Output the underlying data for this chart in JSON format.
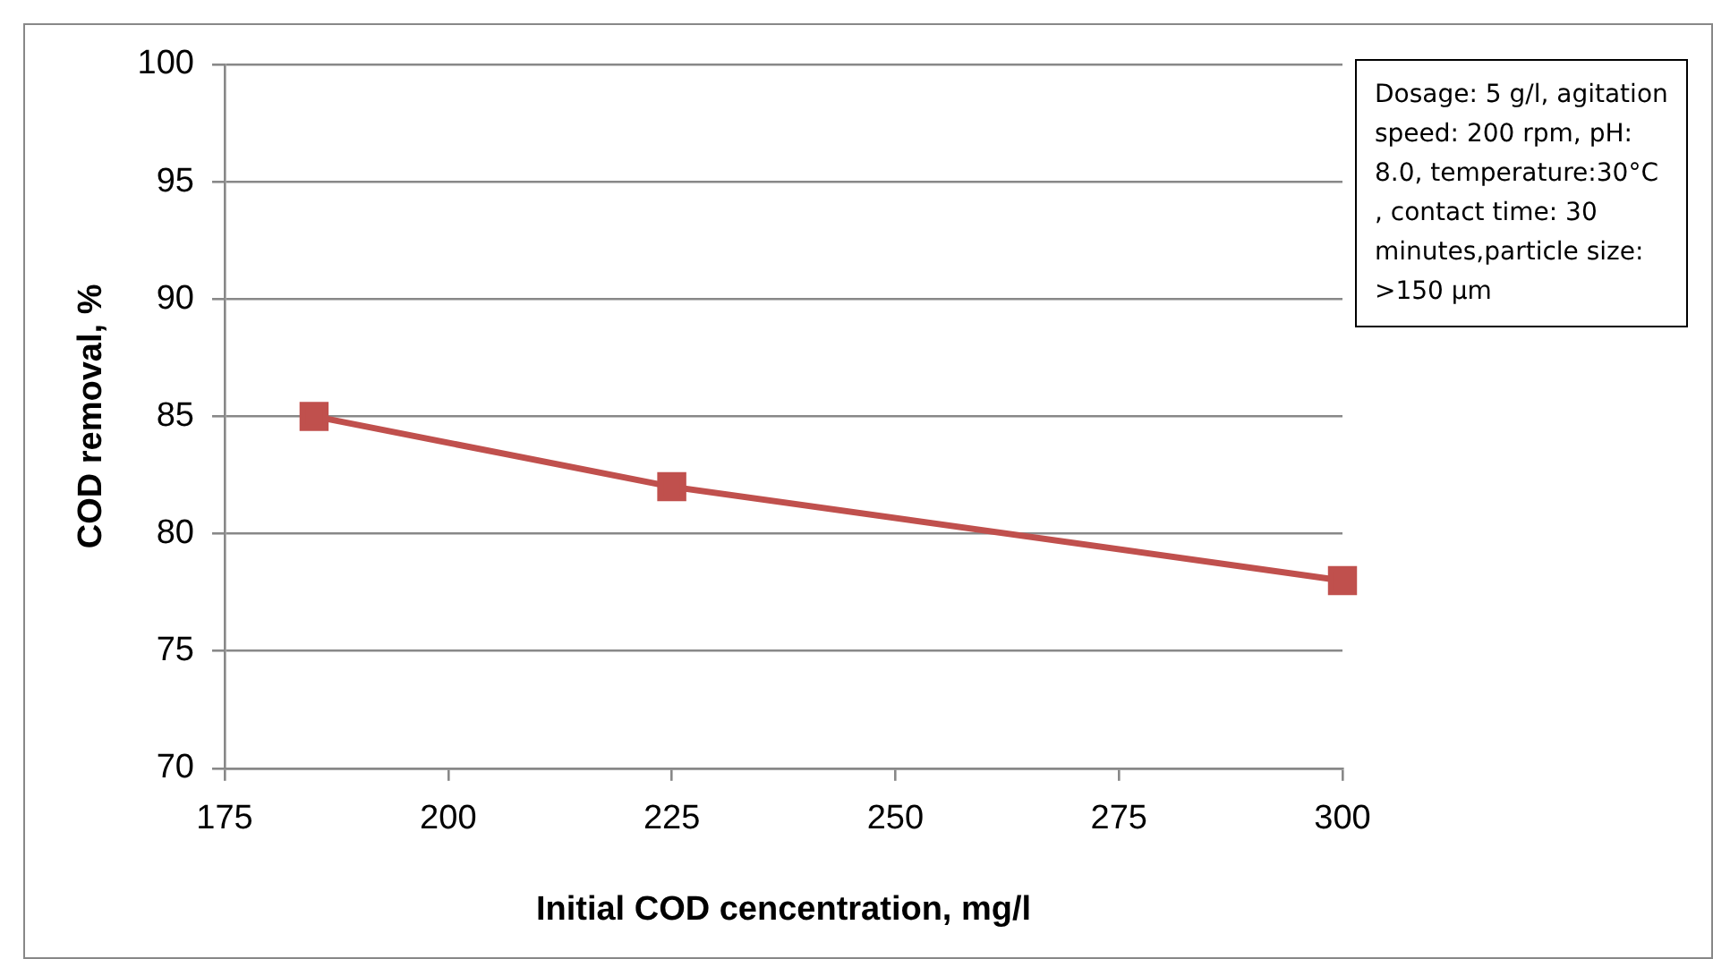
{
  "chart_data": {
    "type": "line",
    "xlabel": "Initial COD cencentration, mg/l",
    "ylabel": "COD removal, %",
    "x": [
      185,
      225,
      300
    ],
    "series": [
      {
        "color": "#c0504d",
        "values": [
          85,
          82,
          78
        ]
      }
    ],
    "xlim": [
      175,
      300
    ],
    "xticks": [
      175,
      200,
      225,
      250,
      275,
      300
    ],
    "ylim": [
      70,
      100
    ],
    "yticks": [
      70,
      75,
      80,
      85,
      90,
      95,
      100
    ],
    "grid": "y",
    "legend": false,
    "marker": "square",
    "line_style": "solid",
    "annotations": [
      "Dosage: 5 g/l, agitation speed: 200 rpm, pH: 8.0, temperature:30°C , contact time: 30 minutes,particle size: >150 µm"
    ]
  }
}
